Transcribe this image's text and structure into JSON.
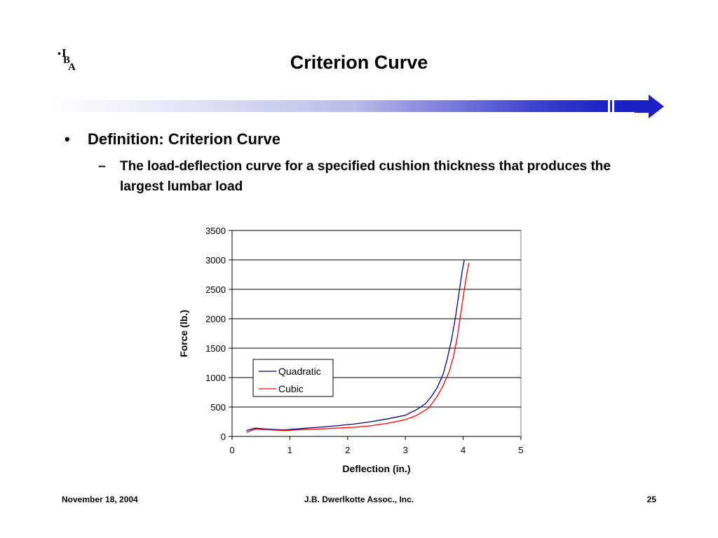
{
  "logo": {
    "letters": [
      "I",
      "B",
      "A"
    ],
    "mark": "•"
  },
  "slide": {
    "title": "Criterion Curve",
    "bullet1_mark": "•",
    "bullet1": "Definition:  Criterion Curve",
    "bullet2_mark": "–",
    "bullet2": "The load-deflection curve for a specified cushion thickness that produces the largest lumbar load"
  },
  "colors": {
    "accent": "#1c22c6",
    "quadratic": "#00008b",
    "cubic": "#ff0000"
  },
  "chart_data": {
    "type": "line",
    "xlabel": "Deflection (in.)",
    "ylabel": "Force (lb.)",
    "xlim": [
      0,
      5
    ],
    "ylim": [
      0,
      3500
    ],
    "xticks": [
      "0",
      "1",
      "2",
      "3",
      "4",
      "5"
    ],
    "yticks": [
      "0",
      "500",
      "1000",
      "1500",
      "2000",
      "2500",
      "3000",
      "3500"
    ],
    "grid": "horizontal",
    "legend_position": "center",
    "series": [
      {
        "name": "Quadratic",
        "color": "#00008b",
        "x": [
          0.25,
          0.4,
          0.6,
          0.9,
          1.2,
          1.5,
          1.8,
          2.1,
          2.4,
          2.7,
          3.0,
          3.2,
          3.35,
          3.45,
          3.55,
          3.65,
          3.72,
          3.8,
          3.87,
          3.93,
          3.98,
          4.02
        ],
        "y": [
          100,
          140,
          125,
          110,
          135,
          155,
          180,
          210,
          250,
          300,
          360,
          460,
          560,
          680,
          830,
          1050,
          1300,
          1650,
          2050,
          2450,
          2800,
          3000
        ]
      },
      {
        "name": "Cubic",
        "color": "#ff0000",
        "x": [
          0.25,
          0.4,
          0.6,
          0.9,
          1.2,
          1.5,
          1.8,
          2.1,
          2.4,
          2.7,
          3.0,
          3.2,
          3.4,
          3.55,
          3.65,
          3.75,
          3.83,
          3.9,
          3.96,
          4.02,
          4.07,
          4.1
        ],
        "y": [
          70,
          125,
          115,
          100,
          115,
          125,
          140,
          155,
          180,
          225,
          285,
          360,
          480,
          680,
          860,
          1080,
          1350,
          1700,
          2100,
          2500,
          2800,
          2950
        ]
      }
    ]
  },
  "footer": {
    "date": "November 18, 2004",
    "company": "J.B. Dwerlkotte Assoc., Inc.",
    "page": "25"
  }
}
